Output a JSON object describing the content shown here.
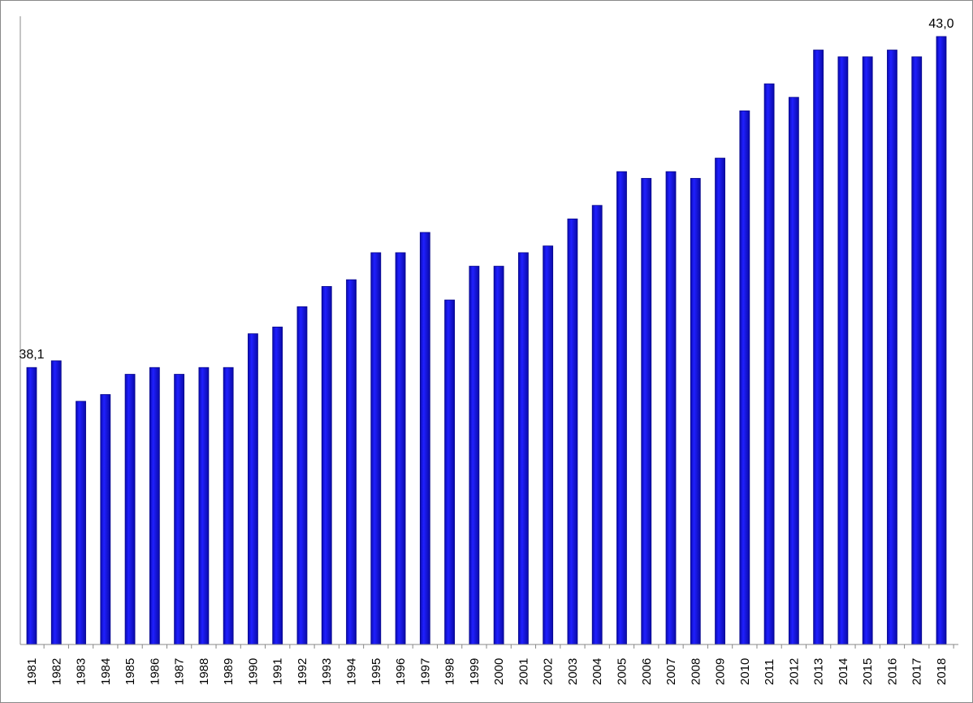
{
  "chart_data": {
    "type": "bar",
    "title": "",
    "xlabel": "",
    "ylabel": "",
    "ylim": [
      34.0,
      43.3
    ],
    "grid": false,
    "legend": "none",
    "bar_color": "#1414e6",
    "categories": [
      "1981",
      "1982",
      "1983",
      "1984",
      "1985",
      "1986",
      "1987",
      "1988",
      "1989",
      "1990",
      "1991",
      "1992",
      "1993",
      "1994",
      "1995",
      "1996",
      "1997",
      "1998",
      "1999",
      "2000",
      "2001",
      "2002",
      "2003",
      "2004",
      "2005",
      "2006",
      "2007",
      "2008",
      "2009",
      "2010",
      "2011",
      "2012",
      "2013",
      "2014",
      "2015",
      "2016",
      "2017",
      "2018"
    ],
    "values": [
      38.1,
      38.2,
      37.6,
      37.7,
      38.0,
      38.1,
      38.0,
      38.1,
      38.1,
      38.6,
      38.7,
      39.0,
      39.3,
      39.4,
      39.8,
      39.8,
      40.1,
      39.1,
      39.6,
      39.6,
      39.8,
      39.9,
      40.3,
      40.5,
      41.0,
      40.9,
      41.0,
      40.9,
      41.2,
      41.9,
      42.3,
      42.1,
      42.8,
      42.7,
      42.7,
      42.8,
      42.7,
      43.0
    ],
    "data_labels": [
      {
        "index": 0,
        "text": "38,1"
      },
      {
        "index": 37,
        "text": "43,0"
      }
    ]
  }
}
